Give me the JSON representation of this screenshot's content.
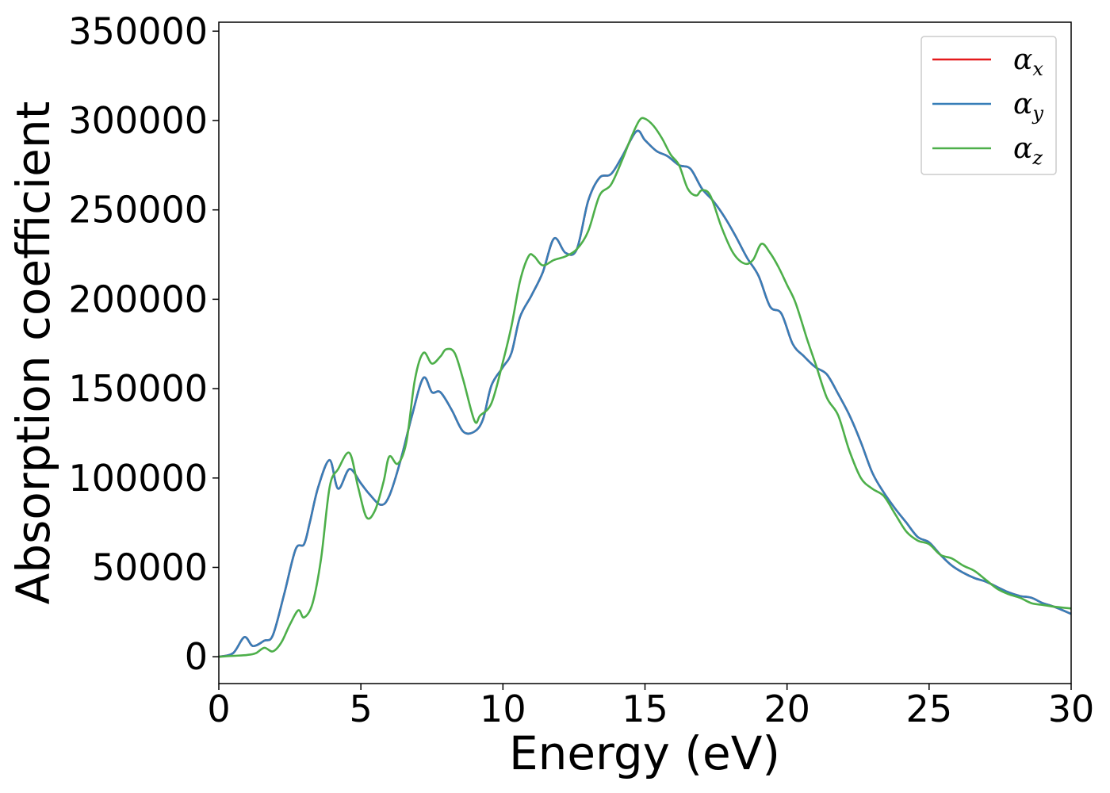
{
  "chart_data": {
    "type": "line",
    "xlabel": "Energy (eV)",
    "ylabel": "Absorption coefficient",
    "xlim": [
      0,
      30
    ],
    "ylim": [
      -15000,
      355000
    ],
    "xticks": [
      0,
      5,
      10,
      15,
      20,
      25,
      30
    ],
    "yticks": [
      0,
      50000,
      100000,
      150000,
      200000,
      250000,
      300000,
      350000
    ],
    "grid": false,
    "legend_position": "top-right",
    "series": [
      {
        "name": "α_x",
        "symbol": "α",
        "subscript": "x",
        "color": "#e41a1c",
        "x": [
          0,
          0.5,
          0.9,
          1.2,
          1.6,
          1.9,
          2.3,
          2.7,
          3.0,
          3.2,
          3.5,
          3.9,
          4.2,
          4.6,
          5.0,
          5.3,
          5.7,
          6.0,
          6.4,
          6.8,
          7.2,
          7.5,
          7.8,
          8.2,
          8.6,
          9.0,
          9.3,
          9.6,
          10.0,
          10.3,
          10.6,
          11.0,
          11.4,
          11.8,
          12.2,
          12.6,
          13.0,
          13.4,
          13.8,
          14.2,
          14.7,
          15.0,
          15.4,
          15.8,
          16.2,
          16.6,
          17.0,
          17.4,
          17.8,
          18.2,
          18.6,
          19.0,
          19.4,
          19.8,
          20.2,
          20.6,
          21.0,
          21.4,
          21.8,
          22.2,
          22.6,
          23.0,
          23.4,
          23.8,
          24.2,
          24.6,
          25.0,
          25.4,
          25.8,
          26.2,
          26.6,
          27.0,
          27.4,
          27.8,
          28.2,
          28.6,
          29.0,
          29.4,
          30.0
        ],
        "values": [
          0,
          2000,
          11000,
          6000,
          9000,
          12000,
          35000,
          60000,
          63000,
          75000,
          95000,
          110000,
          94000,
          105000,
          97000,
          91000,
          85000,
          90000,
          110000,
          135000,
          156000,
          148000,
          148000,
          138000,
          126000,
          126000,
          133000,
          152000,
          162000,
          170000,
          190000,
          202000,
          215000,
          234000,
          226000,
          228000,
          255000,
          268000,
          270000,
          280000,
          294000,
          289000,
          283000,
          280000,
          275000,
          273000,
          262000,
          255000,
          246000,
          235000,
          223000,
          213000,
          196000,
          192000,
          175000,
          168000,
          162000,
          158000,
          147000,
          135000,
          120000,
          103000,
          92000,
          83000,
          75000,
          67000,
          64000,
          57000,
          51000,
          47000,
          44000,
          42000,
          39000,
          36000,
          34000,
          33000,
          30000,
          28000,
          24000
        ]
      },
      {
        "name": "α_y",
        "symbol": "α",
        "subscript": "y",
        "color": "#377eb8",
        "x": [
          0,
          0.5,
          0.9,
          1.2,
          1.6,
          1.9,
          2.3,
          2.7,
          3.0,
          3.2,
          3.5,
          3.9,
          4.2,
          4.6,
          5.0,
          5.3,
          5.7,
          6.0,
          6.4,
          6.8,
          7.2,
          7.5,
          7.8,
          8.2,
          8.6,
          9.0,
          9.3,
          9.6,
          10.0,
          10.3,
          10.6,
          11.0,
          11.4,
          11.8,
          12.2,
          12.6,
          13.0,
          13.4,
          13.8,
          14.2,
          14.7,
          15.0,
          15.4,
          15.8,
          16.2,
          16.6,
          17.0,
          17.4,
          17.8,
          18.2,
          18.6,
          19.0,
          19.4,
          19.8,
          20.2,
          20.6,
          21.0,
          21.4,
          21.8,
          22.2,
          22.6,
          23.0,
          23.4,
          23.8,
          24.2,
          24.6,
          25.0,
          25.4,
          25.8,
          26.2,
          26.6,
          27.0,
          27.4,
          27.8,
          28.2,
          28.6,
          29.0,
          29.4,
          30.0
        ],
        "values": [
          0,
          2000,
          11000,
          6000,
          9000,
          12000,
          35000,
          60000,
          63000,
          75000,
          95000,
          110000,
          94000,
          105000,
          97000,
          91000,
          85000,
          90000,
          110000,
          135000,
          156000,
          148000,
          148000,
          138000,
          126000,
          126000,
          133000,
          152000,
          162000,
          170000,
          190000,
          202000,
          215000,
          234000,
          226000,
          228000,
          255000,
          268000,
          270000,
          280000,
          294000,
          289000,
          283000,
          280000,
          275000,
          273000,
          262000,
          255000,
          246000,
          235000,
          223000,
          213000,
          196000,
          192000,
          175000,
          168000,
          162000,
          158000,
          147000,
          135000,
          120000,
          103000,
          92000,
          83000,
          75000,
          67000,
          64000,
          57000,
          51000,
          47000,
          44000,
          42000,
          39000,
          36000,
          34000,
          33000,
          30000,
          28000,
          24000
        ]
      },
      {
        "name": "α_z",
        "symbol": "α",
        "subscript": "z",
        "color": "#4daf4a",
        "x": [
          0,
          0.5,
          1.0,
          1.3,
          1.6,
          1.9,
          2.2,
          2.5,
          2.8,
          3.0,
          3.3,
          3.6,
          3.9,
          4.2,
          4.6,
          4.9,
          5.2,
          5.5,
          5.8,
          6.0,
          6.3,
          6.6,
          6.9,
          7.2,
          7.5,
          7.8,
          8.0,
          8.3,
          8.6,
          9.0,
          9.2,
          9.6,
          10.0,
          10.3,
          10.6,
          10.9,
          11.1,
          11.4,
          11.8,
          12.2,
          12.6,
          13.0,
          13.4,
          13.8,
          14.2,
          14.5,
          14.8,
          15.0,
          15.3,
          15.6,
          15.9,
          16.2,
          16.5,
          16.8,
          17.0,
          17.3,
          17.7,
          18.1,
          18.5,
          18.8,
          19.1,
          19.4,
          19.7,
          20.0,
          20.3,
          20.7,
          21.0,
          21.4,
          21.8,
          22.2,
          22.6,
          23.0,
          23.4,
          23.8,
          24.2,
          24.6,
          25.0,
          25.4,
          25.8,
          26.2,
          26.6,
          27.0,
          27.4,
          27.8,
          28.2,
          28.6,
          29.0,
          29.4,
          30.0
        ],
        "values": [
          0,
          500,
          1000,
          2000,
          5000,
          3000,
          8000,
          18000,
          26000,
          22000,
          30000,
          55000,
          95000,
          105000,
          114000,
          95000,
          78000,
          82000,
          98000,
          112000,
          108000,
          120000,
          155000,
          170000,
          164000,
          168000,
          172000,
          170000,
          155000,
          132000,
          135000,
          142000,
          165000,
          185000,
          210000,
          224000,
          224000,
          219000,
          222000,
          224000,
          228000,
          238000,
          258000,
          264000,
          278000,
          290000,
          300000,
          301000,
          297000,
          290000,
          281000,
          275000,
          262000,
          258000,
          261000,
          258000,
          240000,
          226000,
          220000,
          222000,
          231000,
          226000,
          218000,
          208000,
          198000,
          178000,
          164000,
          145000,
          135000,
          115000,
          100000,
          94000,
          90000,
          80000,
          70000,
          65000,
          63000,
          57000,
          55000,
          51000,
          48000,
          43000,
          38000,
          35000,
          33000,
          30000,
          29000,
          28000,
          27000
        ]
      }
    ]
  }
}
